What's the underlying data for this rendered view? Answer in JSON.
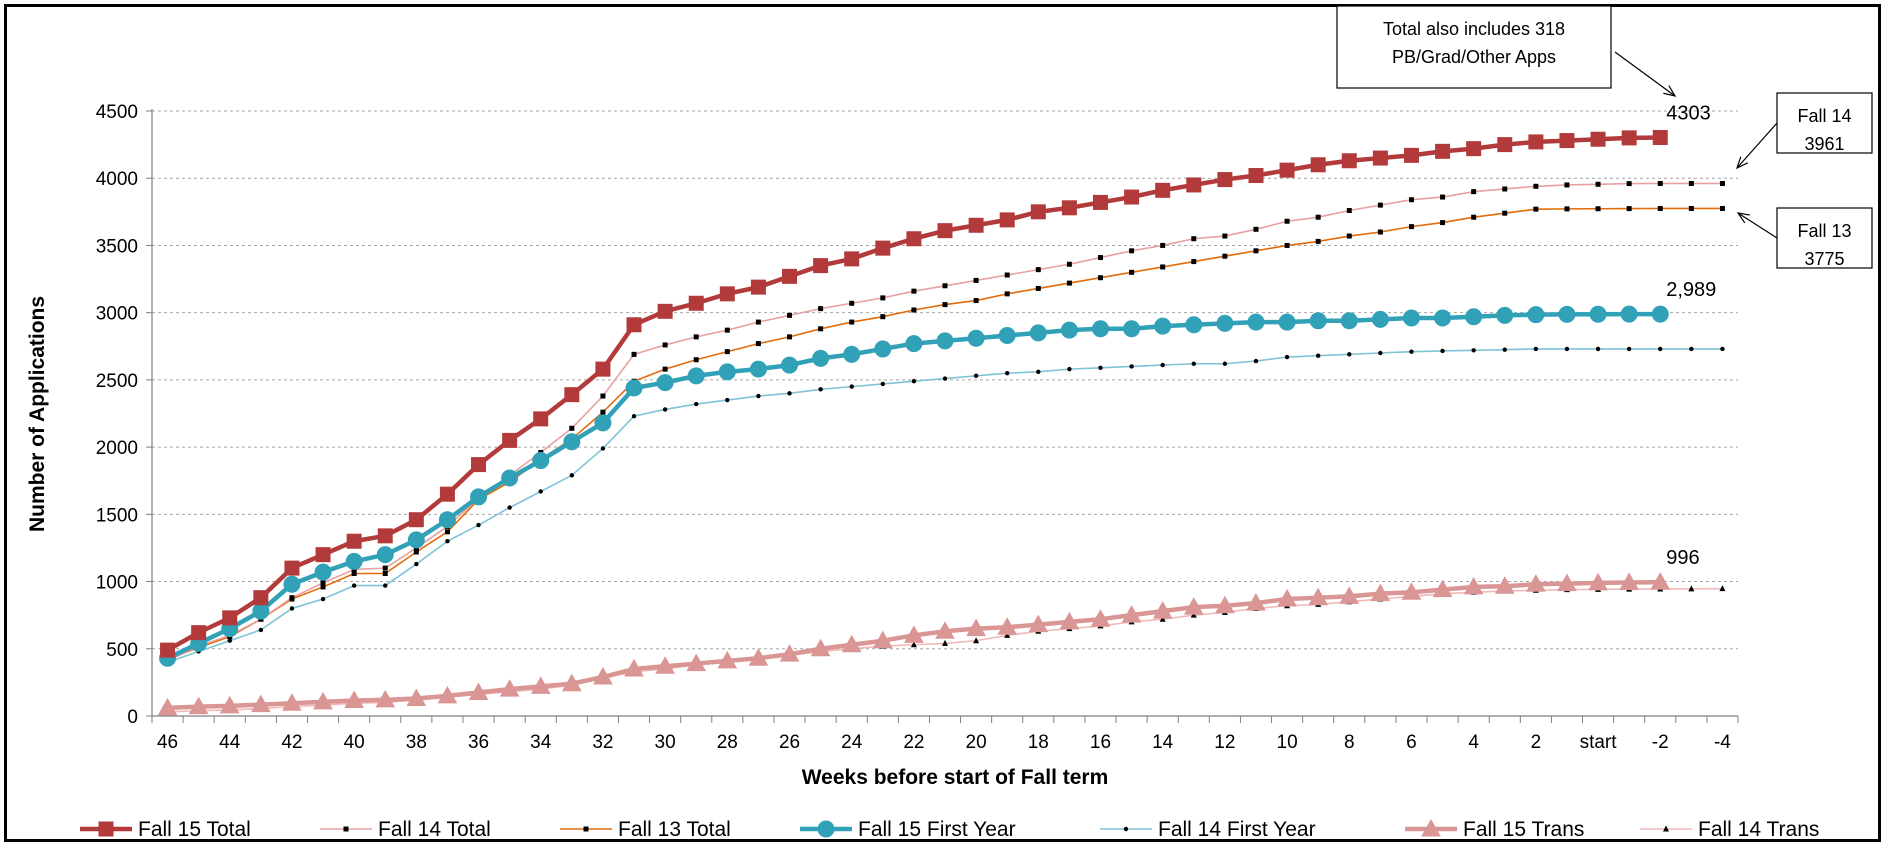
{
  "chart_data": {
    "type": "line",
    "xlabel": "Weeks before start of Fall term",
    "ylabel": "Number of Applications",
    "ylim": [
      0,
      4500
    ],
    "yticks": [
      "0",
      "500",
      "1000",
      "1500",
      "2000",
      "2500",
      "3000",
      "3500",
      "4000",
      "4500"
    ],
    "x": [
      "46",
      "45",
      "44",
      "43",
      "42",
      "41",
      "40",
      "39",
      "38",
      "37",
      "36",
      "35",
      "34",
      "33",
      "32",
      "31",
      "30",
      "29",
      "28",
      "27",
      "26",
      "25",
      "24",
      "23",
      "22",
      "21",
      "20",
      "19",
      "18",
      "17",
      "16",
      "15",
      "14",
      "13",
      "12",
      "11",
      "10",
      "9",
      "8",
      "7",
      "6",
      "5",
      "4",
      "3",
      "2",
      "1",
      "start",
      "-1",
      "-2",
      "-3",
      "-4"
    ],
    "xtick_labels": [
      "46",
      "",
      "44",
      "",
      "42",
      "",
      "40",
      "",
      "38",
      "",
      "36",
      "",
      "34",
      "",
      "32",
      "",
      "30",
      "",
      "28",
      "",
      "26",
      "",
      "24",
      "",
      "22",
      "",
      "20",
      "",
      "18",
      "",
      "16",
      "",
      "14",
      "",
      "12",
      "",
      "10",
      "",
      "8",
      "",
      "6",
      "",
      "4",
      "",
      "2",
      "",
      "start",
      "",
      "-2",
      "",
      "-4"
    ],
    "grid": "horizontal",
    "legend_position": "bottom",
    "series": [
      {
        "name": "Fall 15 Total",
        "color": "#b33a3a",
        "style": "thick-square",
        "values": [
          490,
          620,
          730,
          880,
          1100,
          1200,
          1300,
          1340,
          1460,
          1650,
          1870,
          2050,
          2210,
          2390,
          2580,
          2910,
          3010,
          3070,
          3140,
          3190,
          3270,
          3350,
          3400,
          3480,
          3550,
          3610,
          3650,
          3690,
          3750,
          3780,
          3820,
          3860,
          3910,
          3950,
          3990,
          4020,
          4060,
          4100,
          4130,
          4150,
          4170,
          4200,
          4220,
          4250,
          4270,
          4280,
          4290,
          4300,
          4303,
          null,
          null
        ]
      },
      {
        "name": "Fall 14 Total",
        "color": "#e8a0a0",
        "style": "thin-square",
        "values": [
          410,
          520,
          600,
          720,
          880,
          990,
          1090,
          1100,
          1250,
          1410,
          1620,
          1790,
          1960,
          2140,
          2380,
          2690,
          2760,
          2820,
          2870,
          2930,
          2980,
          3030,
          3070,
          3110,
          3160,
          3200,
          3240,
          3280,
          3320,
          3360,
          3410,
          3460,
          3500,
          3550,
          3570,
          3620,
          3680,
          3710,
          3760,
          3800,
          3840,
          3860,
          3900,
          3920,
          3940,
          3950,
          3955,
          3960,
          3961,
          3961,
          3961
        ]
      },
      {
        "name": "Fall 13 Total",
        "color": "#e36c0a",
        "style": "thin-square",
        "values": [
          420,
          510,
          590,
          720,
          870,
          960,
          1060,
          1060,
          1220,
          1370,
          1610,
          1740,
          1910,
          2060,
          2260,
          2490,
          2580,
          2650,
          2710,
          2770,
          2820,
          2880,
          2930,
          2970,
          3020,
          3060,
          3090,
          3140,
          3180,
          3220,
          3260,
          3300,
          3340,
          3380,
          3420,
          3460,
          3500,
          3530,
          3570,
          3600,
          3640,
          3670,
          3710,
          3740,
          3770,
          3772,
          3773,
          3774,
          3775,
          3775,
          3775
        ]
      },
      {
        "name": "Fall 15 First Year",
        "color": "#31a1b8",
        "style": "thick-circle",
        "values": [
          430,
          540,
          650,
          780,
          980,
          1070,
          1150,
          1200,
          1310,
          1460,
          1630,
          1770,
          1900,
          2040,
          2180,
          2440,
          2480,
          2530,
          2560,
          2580,
          2610,
          2660,
          2690,
          2730,
          2770,
          2790,
          2810,
          2830,
          2850,
          2870,
          2880,
          2880,
          2900,
          2910,
          2920,
          2930,
          2930,
          2940,
          2940,
          2950,
          2960,
          2960,
          2970,
          2980,
          2985,
          2987,
          2988,
          2989,
          2989,
          null,
          null
        ]
      },
      {
        "name": "Fall 14 First Year",
        "color": "#7fc4d6",
        "style": "thin-diamond",
        "values": [
          400,
          480,
          560,
          640,
          800,
          870,
          970,
          970,
          1130,
          1300,
          1420,
          1550,
          1670,
          1790,
          1990,
          2230,
          2280,
          2320,
          2350,
          2380,
          2400,
          2430,
          2450,
          2470,
          2490,
          2510,
          2530,
          2550,
          2560,
          2580,
          2590,
          2600,
          2610,
          2620,
          2620,
          2640,
          2670,
          2680,
          2690,
          2700,
          2710,
          2715,
          2720,
          2725,
          2730,
          2730,
          2730,
          2730,
          2730,
          2730,
          2730
        ]
      },
      {
        "name": "Fall 15 Trans",
        "color": "#d99694",
        "style": "thick-triangle",
        "values": [
          60,
          70,
          75,
          85,
          95,
          105,
          115,
          120,
          130,
          150,
          175,
          200,
          220,
          240,
          290,
          350,
          370,
          390,
          410,
          430,
          460,
          500,
          530,
          560,
          600,
          630,
          650,
          660,
          680,
          700,
          720,
          750,
          780,
          810,
          820,
          840,
          870,
          880,
          890,
          910,
          920,
          940,
          960,
          965,
          980,
          985,
          990,
          993,
          996,
          null,
          null
        ]
      },
      {
        "name": "Fall 14 Trans",
        "color": "#f2b8b8",
        "style": "thin-triangle",
        "values": [
          30,
          40,
          45,
          55,
          70,
          80,
          95,
          100,
          120,
          140,
          160,
          180,
          200,
          230,
          280,
          330,
          350,
          380,
          400,
          420,
          450,
          480,
          500,
          520,
          530,
          540,
          560,
          600,
          630,
          650,
          670,
          700,
          720,
          750,
          770,
          800,
          820,
          830,
          850,
          870,
          890,
          910,
          920,
          930,
          935,
          940,
          942,
          944,
          945,
          946,
          947
        ]
      }
    ],
    "data_labels": [
      {
        "text": "4303",
        "series": "Fall 15 Total"
      },
      {
        "text": "2,989",
        "series": "Fall 15 First Year"
      },
      {
        "text": "996",
        "series": "Fall 15 Trans"
      }
    ],
    "annotations": [
      {
        "id": "total-note",
        "lines": [
          "Total also includes 318",
          "PB/Grad/Other Apps"
        ]
      },
      {
        "id": "fall14-note",
        "lines": [
          "Fall 14",
          "3961"
        ]
      },
      {
        "id": "fall13-note",
        "lines": [
          "Fall 13",
          "3775"
        ]
      }
    ]
  }
}
